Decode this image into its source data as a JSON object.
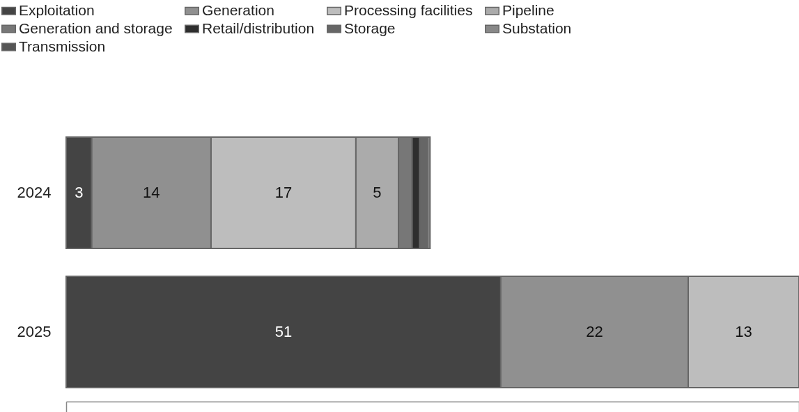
{
  "chart_data": {
    "type": "bar",
    "orientation": "horizontal",
    "stacked": true,
    "categories": [
      "2024",
      "2025"
    ],
    "series": [
      {
        "name": "Exploitation",
        "color": "#444444",
        "values": [
          3,
          51
        ],
        "value_labels": [
          "3",
          "51"
        ]
      },
      {
        "name": "Generation",
        "color": "#909090",
        "values": [
          14,
          22
        ],
        "value_labels": [
          "14",
          "22"
        ]
      },
      {
        "name": "Processing facilities",
        "color": "#bdbdbd",
        "values": [
          17,
          13
        ],
        "value_labels": [
          "17",
          "13"
        ]
      },
      {
        "name": "Pipeline",
        "color": "#ababab",
        "values": [
          5,
          null
        ],
        "value_labels": [
          "5",
          null
        ]
      },
      {
        "name": "Generation and storage",
        "color": "#777777",
        "values": [
          1.6,
          null
        ],
        "value_labels": [
          null,
          null
        ]
      },
      {
        "name": "Retail/distribution",
        "color": "#2e2e2e",
        "values": [
          0.9,
          null
        ],
        "value_labels": [
          null,
          null
        ]
      },
      {
        "name": "Storage",
        "color": "#666666",
        "values": [
          0.9,
          null
        ],
        "value_labels": [
          null,
          null
        ]
      },
      {
        "name": "Substation",
        "color": "#888888",
        "values": [
          0.3,
          null
        ],
        "value_labels": [
          null,
          null
        ]
      },
      {
        "name": "Transmission",
        "color": "#555555",
        "values": [
          null,
          null
        ],
        "value_labels": [
          null,
          null
        ]
      }
    ],
    "xlim": [
      0,
      86
    ],
    "tick_labels": "y",
    "grid": false,
    "legend": "top left"
  }
}
